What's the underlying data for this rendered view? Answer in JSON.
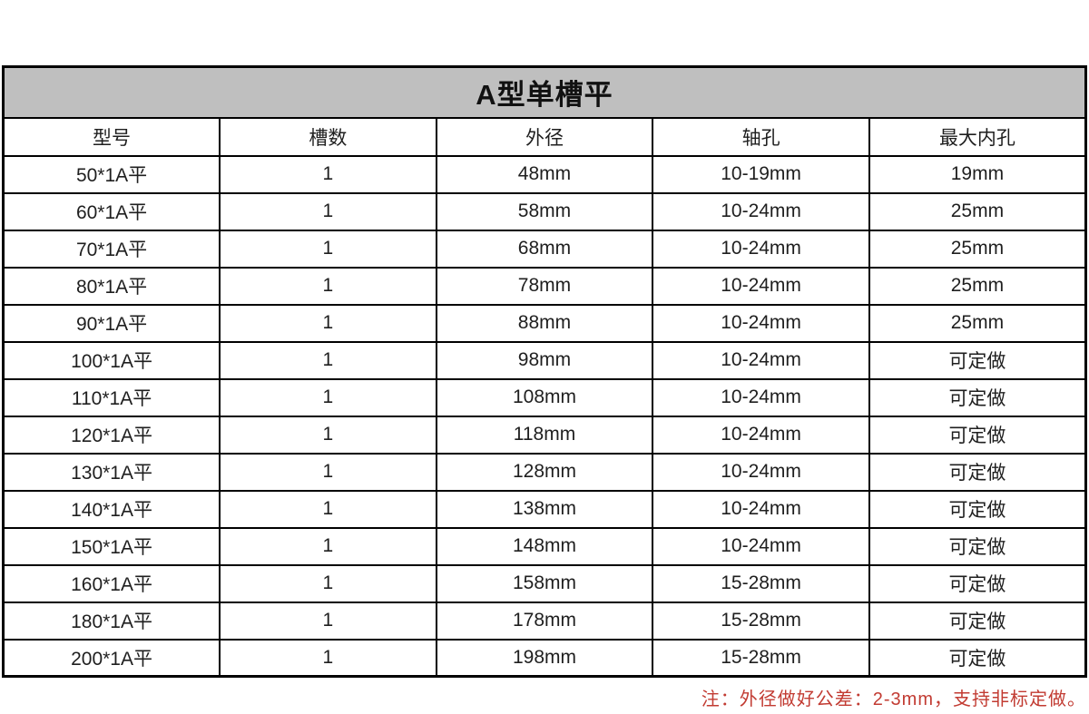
{
  "page": {
    "background": "#ffffff"
  },
  "table": {
    "title": "A型单槽平",
    "title_bg": "#bfbfbf",
    "border_color": "#000000",
    "columns": [
      "型号",
      "槽数",
      "外径",
      "轴孔",
      "最大内孔"
    ],
    "rows": [
      [
        "50*1A平",
        "1",
        "48mm",
        "10-19mm",
        "19mm"
      ],
      [
        "60*1A平",
        "1",
        "58mm",
        "10-24mm",
        "25mm"
      ],
      [
        "70*1A平",
        "1",
        "68mm",
        "10-24mm",
        "25mm"
      ],
      [
        "80*1A平",
        "1",
        "78mm",
        "10-24mm",
        "25mm"
      ],
      [
        "90*1A平",
        "1",
        "88mm",
        "10-24mm",
        "25mm"
      ],
      [
        "100*1A平",
        "1",
        "98mm",
        "10-24mm",
        "可定做"
      ],
      [
        "110*1A平",
        "1",
        "108mm",
        "10-24mm",
        "可定做"
      ],
      [
        "120*1A平",
        "1",
        "118mm",
        "10-24mm",
        "可定做"
      ],
      [
        "130*1A平",
        "1",
        "128mm",
        "10-24mm",
        "可定做"
      ],
      [
        "140*1A平",
        "1",
        "138mm",
        "10-24mm",
        "可定做"
      ],
      [
        "150*1A平",
        "1",
        "148mm",
        "10-24mm",
        "可定做"
      ],
      [
        "160*1A平",
        "1",
        "158mm",
        "15-28mm",
        "可定做"
      ],
      [
        "180*1A平",
        "1",
        "178mm",
        "15-28mm",
        "可定做"
      ],
      [
        "200*1A平",
        "1",
        "198mm",
        "15-28mm",
        "可定做"
      ]
    ]
  },
  "note": {
    "text": "注：外径做好公差：2-3mm，支持非标定做。",
    "color": "#c23b32"
  }
}
